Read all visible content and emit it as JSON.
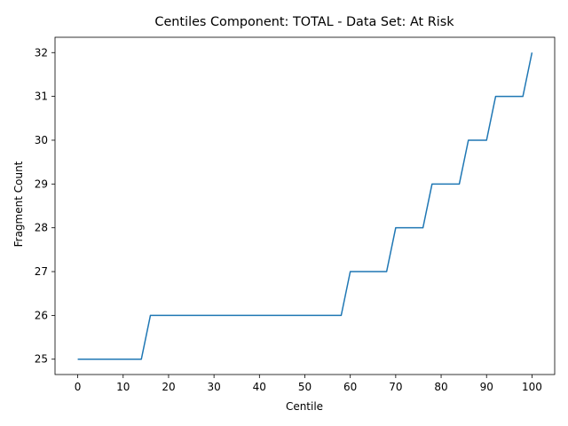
{
  "chart_data": {
    "type": "line",
    "title": "Centiles Component: TOTAL - Data Set: At Risk",
    "xlabel": "Centile",
    "ylabel": "Fragment Count",
    "xlim": [
      -5,
      105
    ],
    "ylim": [
      24.65,
      32.35
    ],
    "xticks": [
      0,
      10,
      20,
      30,
      40,
      50,
      60,
      70,
      80,
      90,
      100
    ],
    "yticks": [
      25,
      26,
      27,
      28,
      29,
      30,
      31,
      32
    ],
    "grid": false,
    "line_color": "#1f77b4",
    "series": [
      {
        "x": [
          0,
          14,
          16,
          58,
          60,
          68,
          70,
          76,
          78,
          84,
          86,
          90,
          92,
          98,
          100
        ],
        "y": [
          25,
          25,
          26,
          26,
          27,
          27,
          28,
          28,
          29,
          29,
          30,
          30,
          31,
          31,
          32
        ]
      }
    ]
  }
}
